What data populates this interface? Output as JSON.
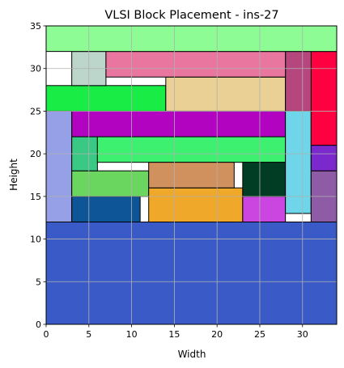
{
  "chart_data": {
    "type": "block_placement",
    "title": "VLSI Block Placement - ins-27",
    "xlabel": "Width",
    "ylabel": "Height",
    "xlim": [
      0,
      34
    ],
    "ylim": [
      0,
      35
    ],
    "xticks": [
      0,
      5,
      10,
      15,
      20,
      25,
      30
    ],
    "yticks": [
      0,
      5,
      10,
      15,
      20,
      25,
      30,
      35
    ],
    "grid": true,
    "blocks": [
      {
        "x": 0,
        "y": 0,
        "w": 34,
        "h": 12,
        "color": "#3a5bc7"
      },
      {
        "x": 0,
        "y": 12,
        "w": 3,
        "h": 13,
        "color": "#96a0e6"
      },
      {
        "x": 3,
        "y": 12,
        "w": 8,
        "h": 3,
        "color": "#0d5596"
      },
      {
        "x": 3,
        "y": 15,
        "w": 9,
        "h": 3,
        "color": "#6ad65f"
      },
      {
        "x": 3,
        "y": 18,
        "w": 3,
        "h": 4,
        "color": "#3ac985"
      },
      {
        "x": 6,
        "y": 19,
        "w": 22,
        "h": 3,
        "color": "#3ef070"
      },
      {
        "x": 12,
        "y": 12,
        "w": 11,
        "h": 4,
        "color": "#f0a82a"
      },
      {
        "x": 12,
        "y": 16,
        "w": 10,
        "h": 3,
        "color": "#d0915e"
      },
      {
        "x": 23,
        "y": 12,
        "w": 5,
        "h": 3,
        "color": "#cb46e0"
      },
      {
        "x": 23,
        "y": 15,
        "w": 5,
        "h": 4,
        "color": "#003d24"
      },
      {
        "x": 3,
        "y": 22,
        "w": 25,
        "h": 3,
        "color": "#b203c1"
      },
      {
        "x": 28,
        "y": 13,
        "w": 3,
        "h": 12,
        "color": "#6ed6e8"
      },
      {
        "x": 31,
        "y": 12,
        "w": 3,
        "h": 6,
        "color": "#8e5ba6"
      },
      {
        "x": 31,
        "y": 18,
        "w": 3,
        "h": 3,
        "color": "#7b28cc"
      },
      {
        "x": 31,
        "y": 21,
        "w": 3,
        "h": 11,
        "color": "#ff0040"
      },
      {
        "x": 0,
        "y": 25,
        "w": 14,
        "h": 3,
        "color": "#1aec46"
      },
      {
        "x": 14,
        "y": 25,
        "w": 14,
        "h": 4,
        "color": "#ead094"
      },
      {
        "x": 28,
        "y": 25,
        "w": 3,
        "h": 7,
        "color": "#b6467e"
      },
      {
        "x": 3,
        "y": 28,
        "w": 4,
        "h": 4,
        "color": "#bdd6cb"
      },
      {
        "x": 7,
        "y": 29,
        "w": 21,
        "h": 3,
        "color": "#e8769e"
      },
      {
        "x": 0,
        "y": 32,
        "w": 34,
        "h": 3,
        "color": "#8efc94"
      }
    ]
  }
}
